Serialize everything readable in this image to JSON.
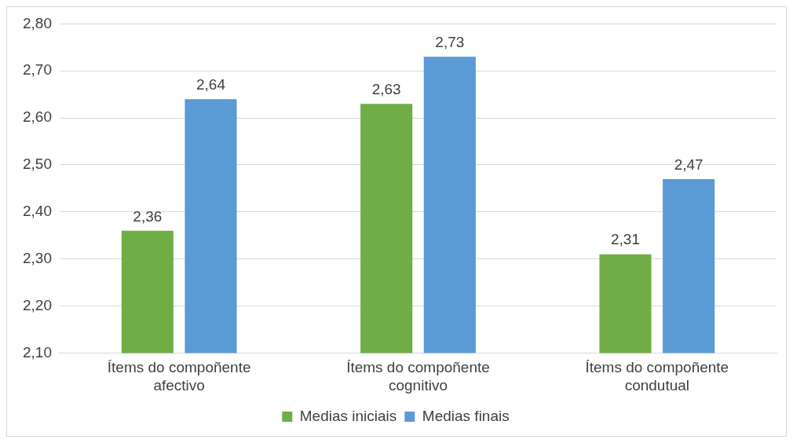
{
  "chart_data": {
    "type": "bar",
    "categories": [
      "Ítems do compoñente afectivo",
      "Ítems do compoñente cognitivo",
      "Ítems do compoñente condutual"
    ],
    "series": [
      {
        "name": "Medias iniciais",
        "color": "#70ad47",
        "values": [
          2.36,
          2.63,
          2.31
        ],
        "value_labels": [
          "2,36",
          "2,63",
          "2,31"
        ]
      },
      {
        "name": "Medias finais",
        "color": "#5b9bd5",
        "values": [
          2.64,
          2.73,
          2.47
        ],
        "value_labels": [
          "2,64",
          "2,73",
          "2,47"
        ]
      }
    ],
    "ylim": [
      2.1,
      2.8
    ],
    "yticks": [
      {
        "value": 2.1,
        "label": "2,10"
      },
      {
        "value": 2.2,
        "label": "2,20"
      },
      {
        "value": 2.3,
        "label": "2,30"
      },
      {
        "value": 2.4,
        "label": "2,40"
      },
      {
        "value": 2.5,
        "label": "2,50"
      },
      {
        "value": 2.6,
        "label": "2,60"
      },
      {
        "value": 2.7,
        "label": "2,70"
      },
      {
        "value": 2.8,
        "label": "2,80"
      }
    ],
    "grid": "y",
    "legend": "bottom"
  }
}
